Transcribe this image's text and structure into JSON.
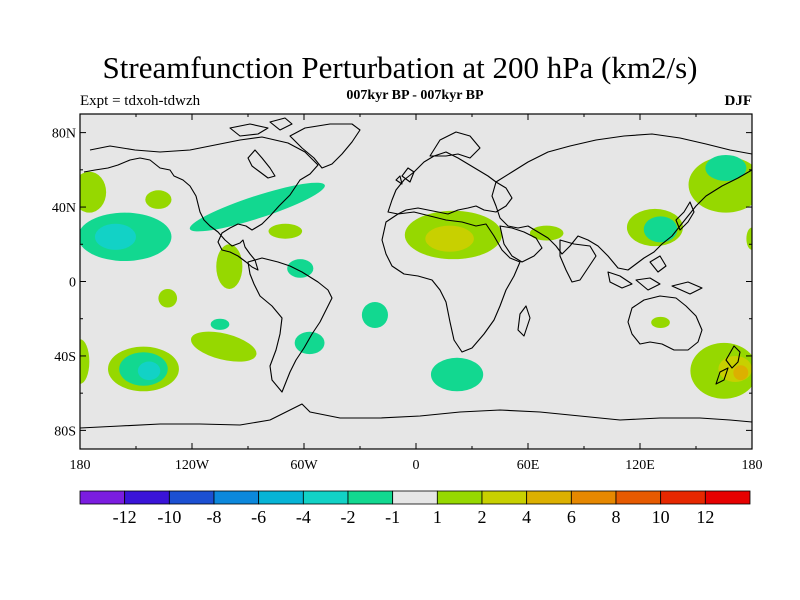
{
  "title": "Streamfunction Perturbation at 200 hPa (km2/s)",
  "subtitle": "007kyr BP - 007kyr BP",
  "left_label": "Expt = tdxoh-tdwzh",
  "right_label": "DJF",
  "chart_data": {
    "type": "contour-map",
    "projection": "cylindrical-equidistant",
    "lon_range": [
      -180,
      180
    ],
    "lat_range": [
      -90,
      90
    ],
    "x_ticks": [
      {
        "value": -180,
        "label": "180"
      },
      {
        "value": -120,
        "label": "120W"
      },
      {
        "value": -60,
        "label": "60W"
      },
      {
        "value": 0,
        "label": "0"
      },
      {
        "value": 60,
        "label": "60E"
      },
      {
        "value": 120,
        "label": "120E"
      },
      {
        "value": 180,
        "label": "180"
      }
    ],
    "y_ticks": [
      {
        "value": 80,
        "label": "80N"
      },
      {
        "value": 40,
        "label": "40N"
      },
      {
        "value": 0,
        "label": "0"
      },
      {
        "value": -40,
        "label": "40S"
      },
      {
        "value": -80,
        "label": "80S"
      }
    ],
    "colorbar": {
      "levels": [
        "-12",
        "-10",
        "-8",
        "-6",
        "-4",
        "-2",
        "-1",
        "1",
        "2",
        "4",
        "6",
        "8",
        "10",
        "12"
      ],
      "colors": [
        "#7b1de0",
        "#3a14d8",
        "#1c50d2",
        "#0c88dc",
        "#06b4d6",
        "#12d2c6",
        "#12d890",
        "#e6e6e6",
        "#96d800",
        "#c8d000",
        "#dcb000",
        "#e68800",
        "#e65a00",
        "#e62800",
        "#e60000"
      ]
    },
    "regions": [
      {
        "name": "n-pacific-w",
        "lon": -175,
        "lat": 48,
        "rx": 9,
        "ry": 11,
        "level_index": 8
      },
      {
        "name": "n-pacific-small",
        "lon": -138,
        "lat": 44,
        "rx": 7,
        "ry": 5,
        "level_index": 8
      },
      {
        "name": "subtrop-pacific-outer",
        "lon": -156,
        "lat": 24,
        "rx": 25,
        "ry": 13,
        "level_index": 6
      },
      {
        "name": "subtrop-pacific-inner",
        "lon": -161,
        "lat": 24,
        "rx": 11,
        "ry": 7,
        "level_index": 5
      },
      {
        "name": "n-atlantic-band",
        "lon": -85,
        "lat": 40,
        "rx": 38,
        "ry": 6,
        "angle": -18,
        "level_index": 6
      },
      {
        "name": "caribbean",
        "lon": -70,
        "lat": 27,
        "rx": 9,
        "ry": 4,
        "level_index": 8
      },
      {
        "name": "mexico-pacific",
        "lon": -100,
        "lat": 8,
        "rx": 7,
        "ry": 12,
        "level_index": 8
      },
      {
        "name": "trop-atlantic-w",
        "lon": -62,
        "lat": 7,
        "rx": 7,
        "ry": 5,
        "level_index": 6
      },
      {
        "name": "trop-pacific-s",
        "lon": -133,
        "lat": -9,
        "rx": 5,
        "ry": 5,
        "level_index": 8
      },
      {
        "name": "s-pacific-small",
        "lon": -105,
        "lat": -23,
        "rx": 5,
        "ry": 3,
        "level_index": 6
      },
      {
        "name": "s-atlantic",
        "lon": -22,
        "lat": -18,
        "rx": 7,
        "ry": 7,
        "level_index": 6
      },
      {
        "name": "argentina",
        "lon": -57,
        "lat": -33,
        "rx": 8,
        "ry": 6,
        "level_index": 6
      },
      {
        "name": "s-pacific-mid",
        "lon": -103,
        "lat": -35,
        "rx": 18,
        "ry": 7,
        "angle": 14,
        "level_index": 8
      },
      {
        "name": "s-pacific-sw-outer",
        "lon": -146,
        "lat": -47,
        "rx": 19,
        "ry": 12,
        "level_index": 8
      },
      {
        "name": "s-pacific-sw-mid",
        "lon": -146,
        "lat": -47,
        "rx": 13,
        "ry": 9,
        "level_index": 6
      },
      {
        "name": "s-pacific-sw-inner",
        "lon": -143,
        "lat": -48,
        "rx": 6,
        "ry": 5,
        "level_index": 5
      },
      {
        "name": "far-sw-pacific",
        "lon": -180,
        "lat": -43,
        "rx": 5,
        "ry": 12,
        "level_index": 8
      },
      {
        "name": "n-africa-outer",
        "lon": 20,
        "lat": 25,
        "rx": 26,
        "ry": 13,
        "level_index": 8
      },
      {
        "name": "n-africa-inner",
        "lon": 18,
        "lat": 23,
        "rx": 13,
        "ry": 7,
        "level_index": 9
      },
      {
        "name": "arabia",
        "lon": 70,
        "lat": 26,
        "rx": 9,
        "ry": 4,
        "level_index": 8
      },
      {
        "name": "s-atlantic-indian",
        "lon": 22,
        "lat": -50,
        "rx": 14,
        "ry": 9,
        "level_index": 6
      },
      {
        "name": "w-pacific-outer",
        "lon": 128,
        "lat": 29,
        "rx": 15,
        "ry": 10,
        "level_index": 8
      },
      {
        "name": "w-pacific-inner",
        "lon": 131,
        "lat": 28,
        "rx": 9,
        "ry": 7,
        "level_index": 6
      },
      {
        "name": "kamchatka-outer",
        "lon": 166,
        "lat": 52,
        "rx": 20,
        "ry": 15,
        "level_index": 8
      },
      {
        "name": "kamchatka-inner",
        "lon": 166,
        "lat": 61,
        "rx": 11,
        "ry": 7,
        "level_index": 6
      },
      {
        "name": "far-ne-pacific",
        "lon": 180,
        "lat": 23,
        "rx": 3,
        "ry": 6,
        "level_index": 8
      },
      {
        "name": "australia",
        "lon": 131,
        "lat": -22,
        "rx": 5,
        "ry": 3,
        "level_index": 8
      },
      {
        "name": "tasman-outer",
        "lon": 165,
        "lat": -48,
        "rx": 18,
        "ry": 15,
        "level_index": 8
      },
      {
        "name": "tasman-inner",
        "lon": 171,
        "lat": -47,
        "rx": 9,
        "ry": 7,
        "level_index": 9
      },
      {
        "name": "tasman-core",
        "lon": 174,
        "lat": -49,
        "rx": 4,
        "ry": 4,
        "level_index": 10
      }
    ]
  }
}
